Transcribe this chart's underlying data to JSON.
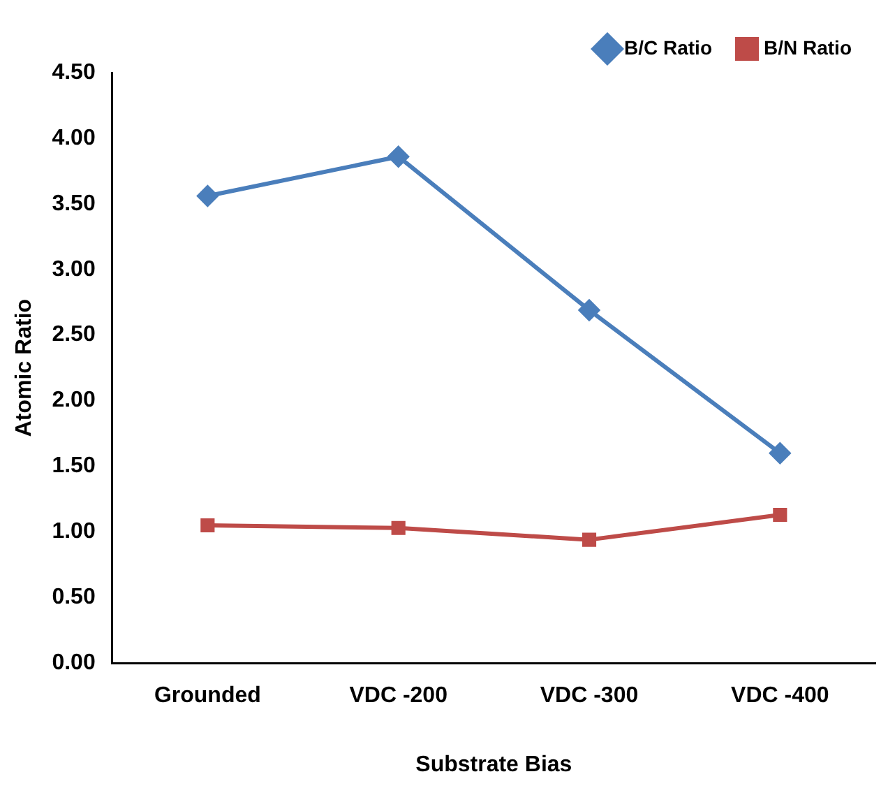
{
  "chart_data": {
    "type": "line",
    "xlabel": "Substrate Bias",
    "ylabel": "Atomic Ratio",
    "categories": [
      "Grounded",
      "VDC -200",
      "VDC -300",
      "VDC -400"
    ],
    "series": [
      {
        "name": "B/C Ratio",
        "color": "#4a7ebb",
        "marker": "diamond",
        "values": [
          3.56,
          3.86,
          2.69,
          1.6
        ]
      },
      {
        "name": "B/N Ratio",
        "color": "#be4b48",
        "marker": "square",
        "values": [
          1.05,
          1.03,
          0.94,
          1.13
        ]
      }
    ],
    "ylim": [
      0,
      4.5
    ],
    "yticks": [
      {
        "value": 0,
        "label": "0.00"
      },
      {
        "value": 0.5,
        "label": "0.50"
      },
      {
        "value": 1,
        "label": "1.00"
      },
      {
        "value": 1.5,
        "label": "1.50"
      },
      {
        "value": 2,
        "label": "2.00"
      },
      {
        "value": 2.5,
        "label": "2.50"
      },
      {
        "value": 3,
        "label": "3.00"
      },
      {
        "value": 3.5,
        "label": "3.50"
      },
      {
        "value": 4,
        "label": "4.00"
      },
      {
        "value": 4.5,
        "label": "4.50"
      }
    ],
    "grid": false,
    "legend": "top right",
    "line_style": "solid"
  }
}
